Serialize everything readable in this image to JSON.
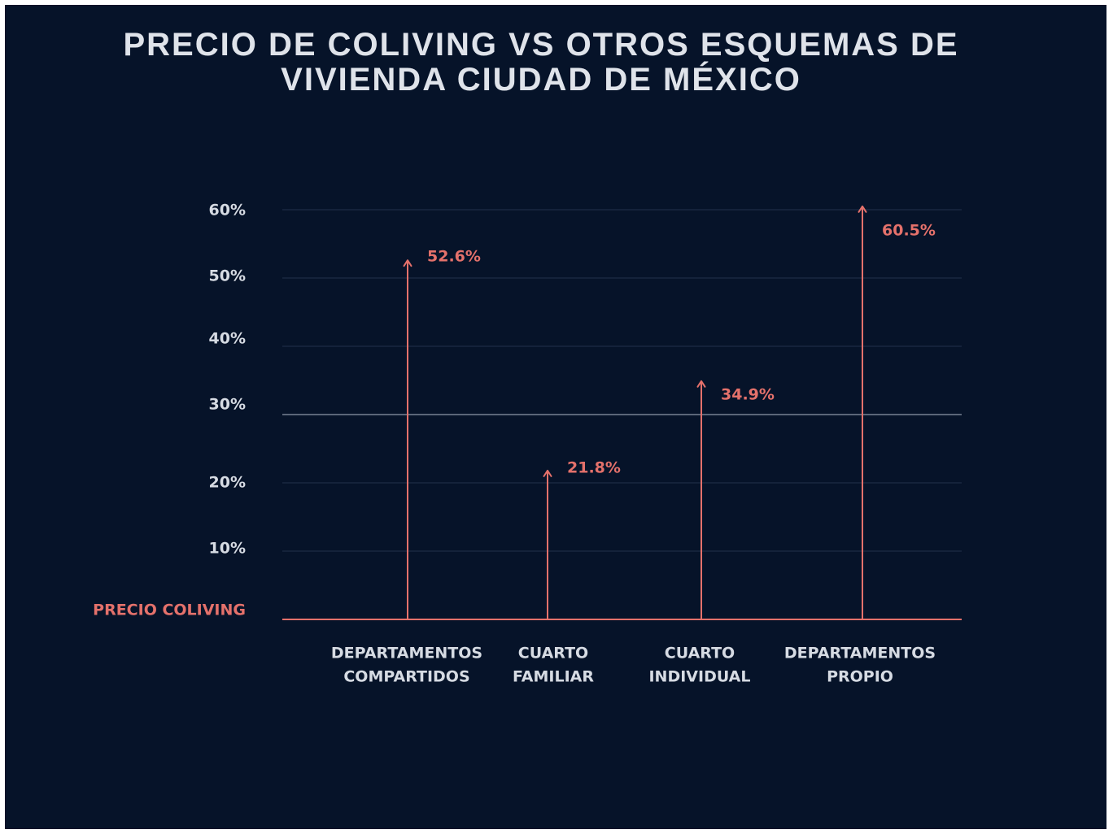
{
  "title_lines": [
    "PRECIO DE COLIVING VS OTROS ESQUEMAS DE",
    "VIVIENDA CIUDAD DE MÉXICO"
  ],
  "colors": {
    "background": "#061329",
    "accent": "#e4716b",
    "text": "#d6dbe3",
    "grid": "#22304a",
    "grid_highlight": "#8e97a8"
  },
  "chart_data": {
    "type": "bar",
    "title": "PRECIO DE COLIVING VS OTROS ESQUEMAS DE VIVIENDA CIUDAD DE MÉXICO",
    "xlabel": "",
    "ylabel": "",
    "ylim": [
      0,
      60
    ],
    "baseline_label": "PRECIO COLIVING",
    "yticks": [
      {
        "value": 10,
        "label": "10%"
      },
      {
        "value": 20,
        "label": "20%"
      },
      {
        "value": 30,
        "label": "30%"
      },
      {
        "value": 40,
        "label": "40%"
      },
      {
        "value": 50,
        "label": "50%"
      },
      {
        "value": 60,
        "label": "60%"
      }
    ],
    "categories": [
      [
        "DEPARTAMENTOS",
        "COMPARTIDOS"
      ],
      [
        "CUARTO",
        "FAMILIAR"
      ],
      [
        "CUARTO",
        "INDIVIDUAL"
      ],
      [
        "DEPARTAMENTOS",
        "PROPIO"
      ]
    ],
    "values": [
      52.6,
      21.8,
      34.9,
      60.5
    ],
    "value_labels": [
      "52.6%",
      "21.8%",
      "34.9%",
      "60.5%"
    ],
    "grid": true,
    "mark_style": "arrow"
  }
}
